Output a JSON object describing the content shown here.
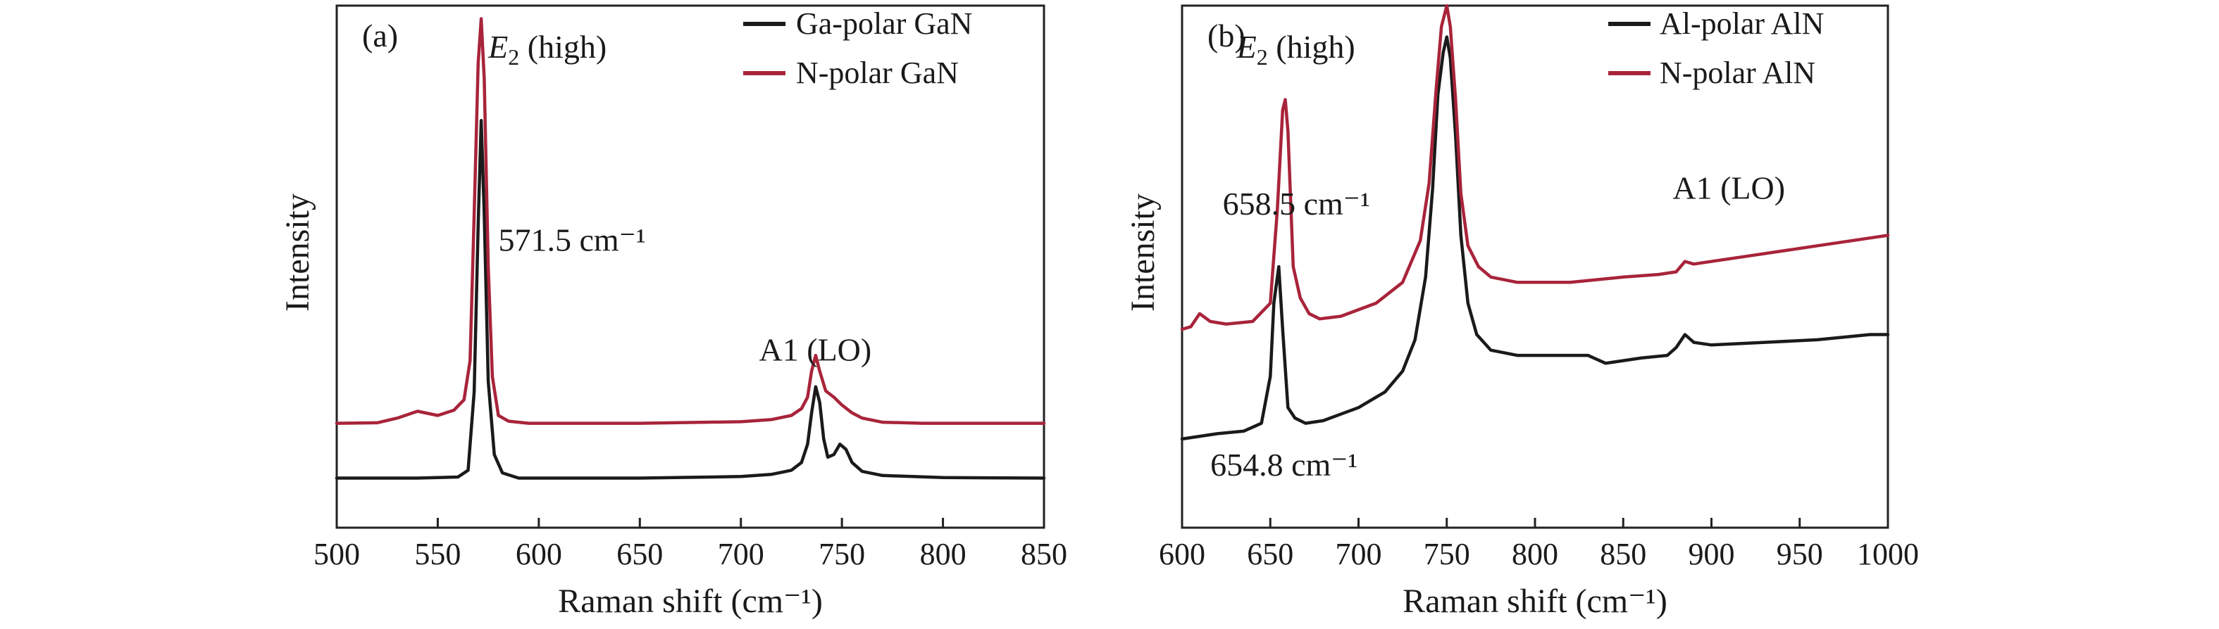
{
  "chart_data": [
    {
      "type": "line",
      "panel_label": "(a)",
      "xlabel": "Raman shift (cm⁻¹)",
      "ylabel": "Intensity",
      "xlim": [
        500,
        850
      ],
      "ylim": [
        0,
        1
      ],
      "xticks": [
        500,
        550,
        600,
        650,
        700,
        750,
        800,
        850
      ],
      "grid": false,
      "legend_position": "top-right",
      "series": [
        {
          "name": "Ga-polar GaN",
          "color": "#1a1a1a",
          "x": [
            500,
            540,
            560,
            565,
            568,
            570,
            571.5,
            573,
            575,
            578,
            582,
            590,
            620,
            650,
            700,
            715,
            725,
            730,
            733,
            735,
            737,
            739,
            741,
            743,
            746,
            749,
            752,
            755,
            760,
            770,
            800,
            850
          ],
          "y": [
            0.095,
            0.095,
            0.097,
            0.11,
            0.26,
            0.58,
            0.78,
            0.6,
            0.28,
            0.14,
            0.105,
            0.095,
            0.095,
            0.095,
            0.098,
            0.102,
            0.11,
            0.125,
            0.16,
            0.22,
            0.27,
            0.24,
            0.17,
            0.135,
            0.14,
            0.16,
            0.15,
            0.125,
            0.108,
            0.1,
            0.096,
            0.095
          ]
        },
        {
          "name": "N-polar GaN",
          "color": "#a8243a",
          "x": [
            500,
            520,
            530,
            540,
            550,
            558,
            563,
            566,
            568,
            570,
            571.5,
            573,
            575,
            577,
            580,
            585,
            595,
            620,
            650,
            700,
            715,
            725,
            730,
            733,
            735,
            737,
            739,
            742,
            746,
            750,
            755,
            760,
            770,
            790,
            850
          ],
          "y": [
            0.2,
            0.201,
            0.21,
            0.223,
            0.215,
            0.225,
            0.245,
            0.32,
            0.6,
            0.89,
            0.975,
            0.86,
            0.5,
            0.29,
            0.215,
            0.204,
            0.2,
            0.2,
            0.2,
            0.203,
            0.207,
            0.215,
            0.228,
            0.25,
            0.3,
            0.33,
            0.3,
            0.262,
            0.25,
            0.235,
            0.22,
            0.21,
            0.202,
            0.2,
            0.2
          ]
        }
      ],
      "annotations": [
        {
          "text": "(high)",
          "italic_prefix": "E",
          "subscript": "2",
          "x": 575,
          "y": 0.9
        },
        {
          "text": "571.5 cm⁻¹",
          "x": 580,
          "y": 0.53
        },
        {
          "text": "A1 (LO)",
          "x": 709,
          "y": 0.32
        }
      ]
    },
    {
      "type": "line",
      "panel_label": "(b)",
      "xlabel": "Raman shift (cm⁻¹)",
      "ylabel": "Intensity",
      "xlim": [
        600,
        1000
      ],
      "ylim": [
        0,
        1
      ],
      "xticks": [
        600,
        650,
        700,
        750,
        800,
        850,
        900,
        950,
        1000
      ],
      "grid": false,
      "legend_position": "top-right",
      "series": [
        {
          "name": "Al-polar AlN",
          "color": "#1a1a1a",
          "x": [
            600,
            620,
            635,
            645,
            650,
            652,
            654.8,
            657,
            660,
            664,
            670,
            680,
            700,
            715,
            725,
            732,
            738,
            742,
            745,
            748,
            750,
            752,
            755,
            758,
            762,
            767,
            775,
            790,
            810,
            830,
            840,
            860,
            875,
            880,
            885,
            890,
            900,
            930,
            960,
            990,
            1000
          ],
          "y": [
            0.17,
            0.18,
            0.185,
            0.2,
            0.29,
            0.43,
            0.5,
            0.38,
            0.23,
            0.21,
            0.2,
            0.205,
            0.23,
            0.26,
            0.3,
            0.36,
            0.48,
            0.65,
            0.83,
            0.91,
            0.94,
            0.9,
            0.75,
            0.56,
            0.43,
            0.37,
            0.34,
            0.33,
            0.33,
            0.33,
            0.315,
            0.325,
            0.33,
            0.345,
            0.37,
            0.355,
            0.35,
            0.355,
            0.36,
            0.37,
            0.37
          ]
        },
        {
          "name": "N-polar AlN",
          "color": "#a8243a",
          "x": [
            600,
            605,
            610,
            616,
            625,
            640,
            650,
            654,
            657,
            658.5,
            660,
            663,
            667,
            672,
            678,
            690,
            710,
            725,
            735,
            740,
            744,
            747,
            750,
            752,
            755,
            758,
            762,
            768,
            775,
            790,
            820,
            850,
            870,
            880,
            885,
            890,
            920,
            960,
            1000
          ],
          "y": [
            0.38,
            0.385,
            0.41,
            0.395,
            0.39,
            0.395,
            0.43,
            0.61,
            0.8,
            0.82,
            0.76,
            0.5,
            0.44,
            0.41,
            0.4,
            0.405,
            0.43,
            0.47,
            0.55,
            0.66,
            0.84,
            0.96,
            1.0,
            0.96,
            0.82,
            0.64,
            0.54,
            0.5,
            0.48,
            0.47,
            0.47,
            0.48,
            0.485,
            0.49,
            0.51,
            0.505,
            0.52,
            0.54,
            0.56
          ]
        }
      ],
      "annotations": [
        {
          "text": "(high)",
          "italic_prefix": "E",
          "subscript": "2",
          "x": 631,
          "y": 0.9
        },
        {
          "text": "658.5 cm⁻¹",
          "x": 623,
          "y": 0.6
        },
        {
          "text": "654.8 cm⁻¹",
          "x": 616,
          "y": 0.1
        },
        {
          "text": "A1 (LO)",
          "x": 878,
          "y": 0.63
        }
      ]
    }
  ]
}
